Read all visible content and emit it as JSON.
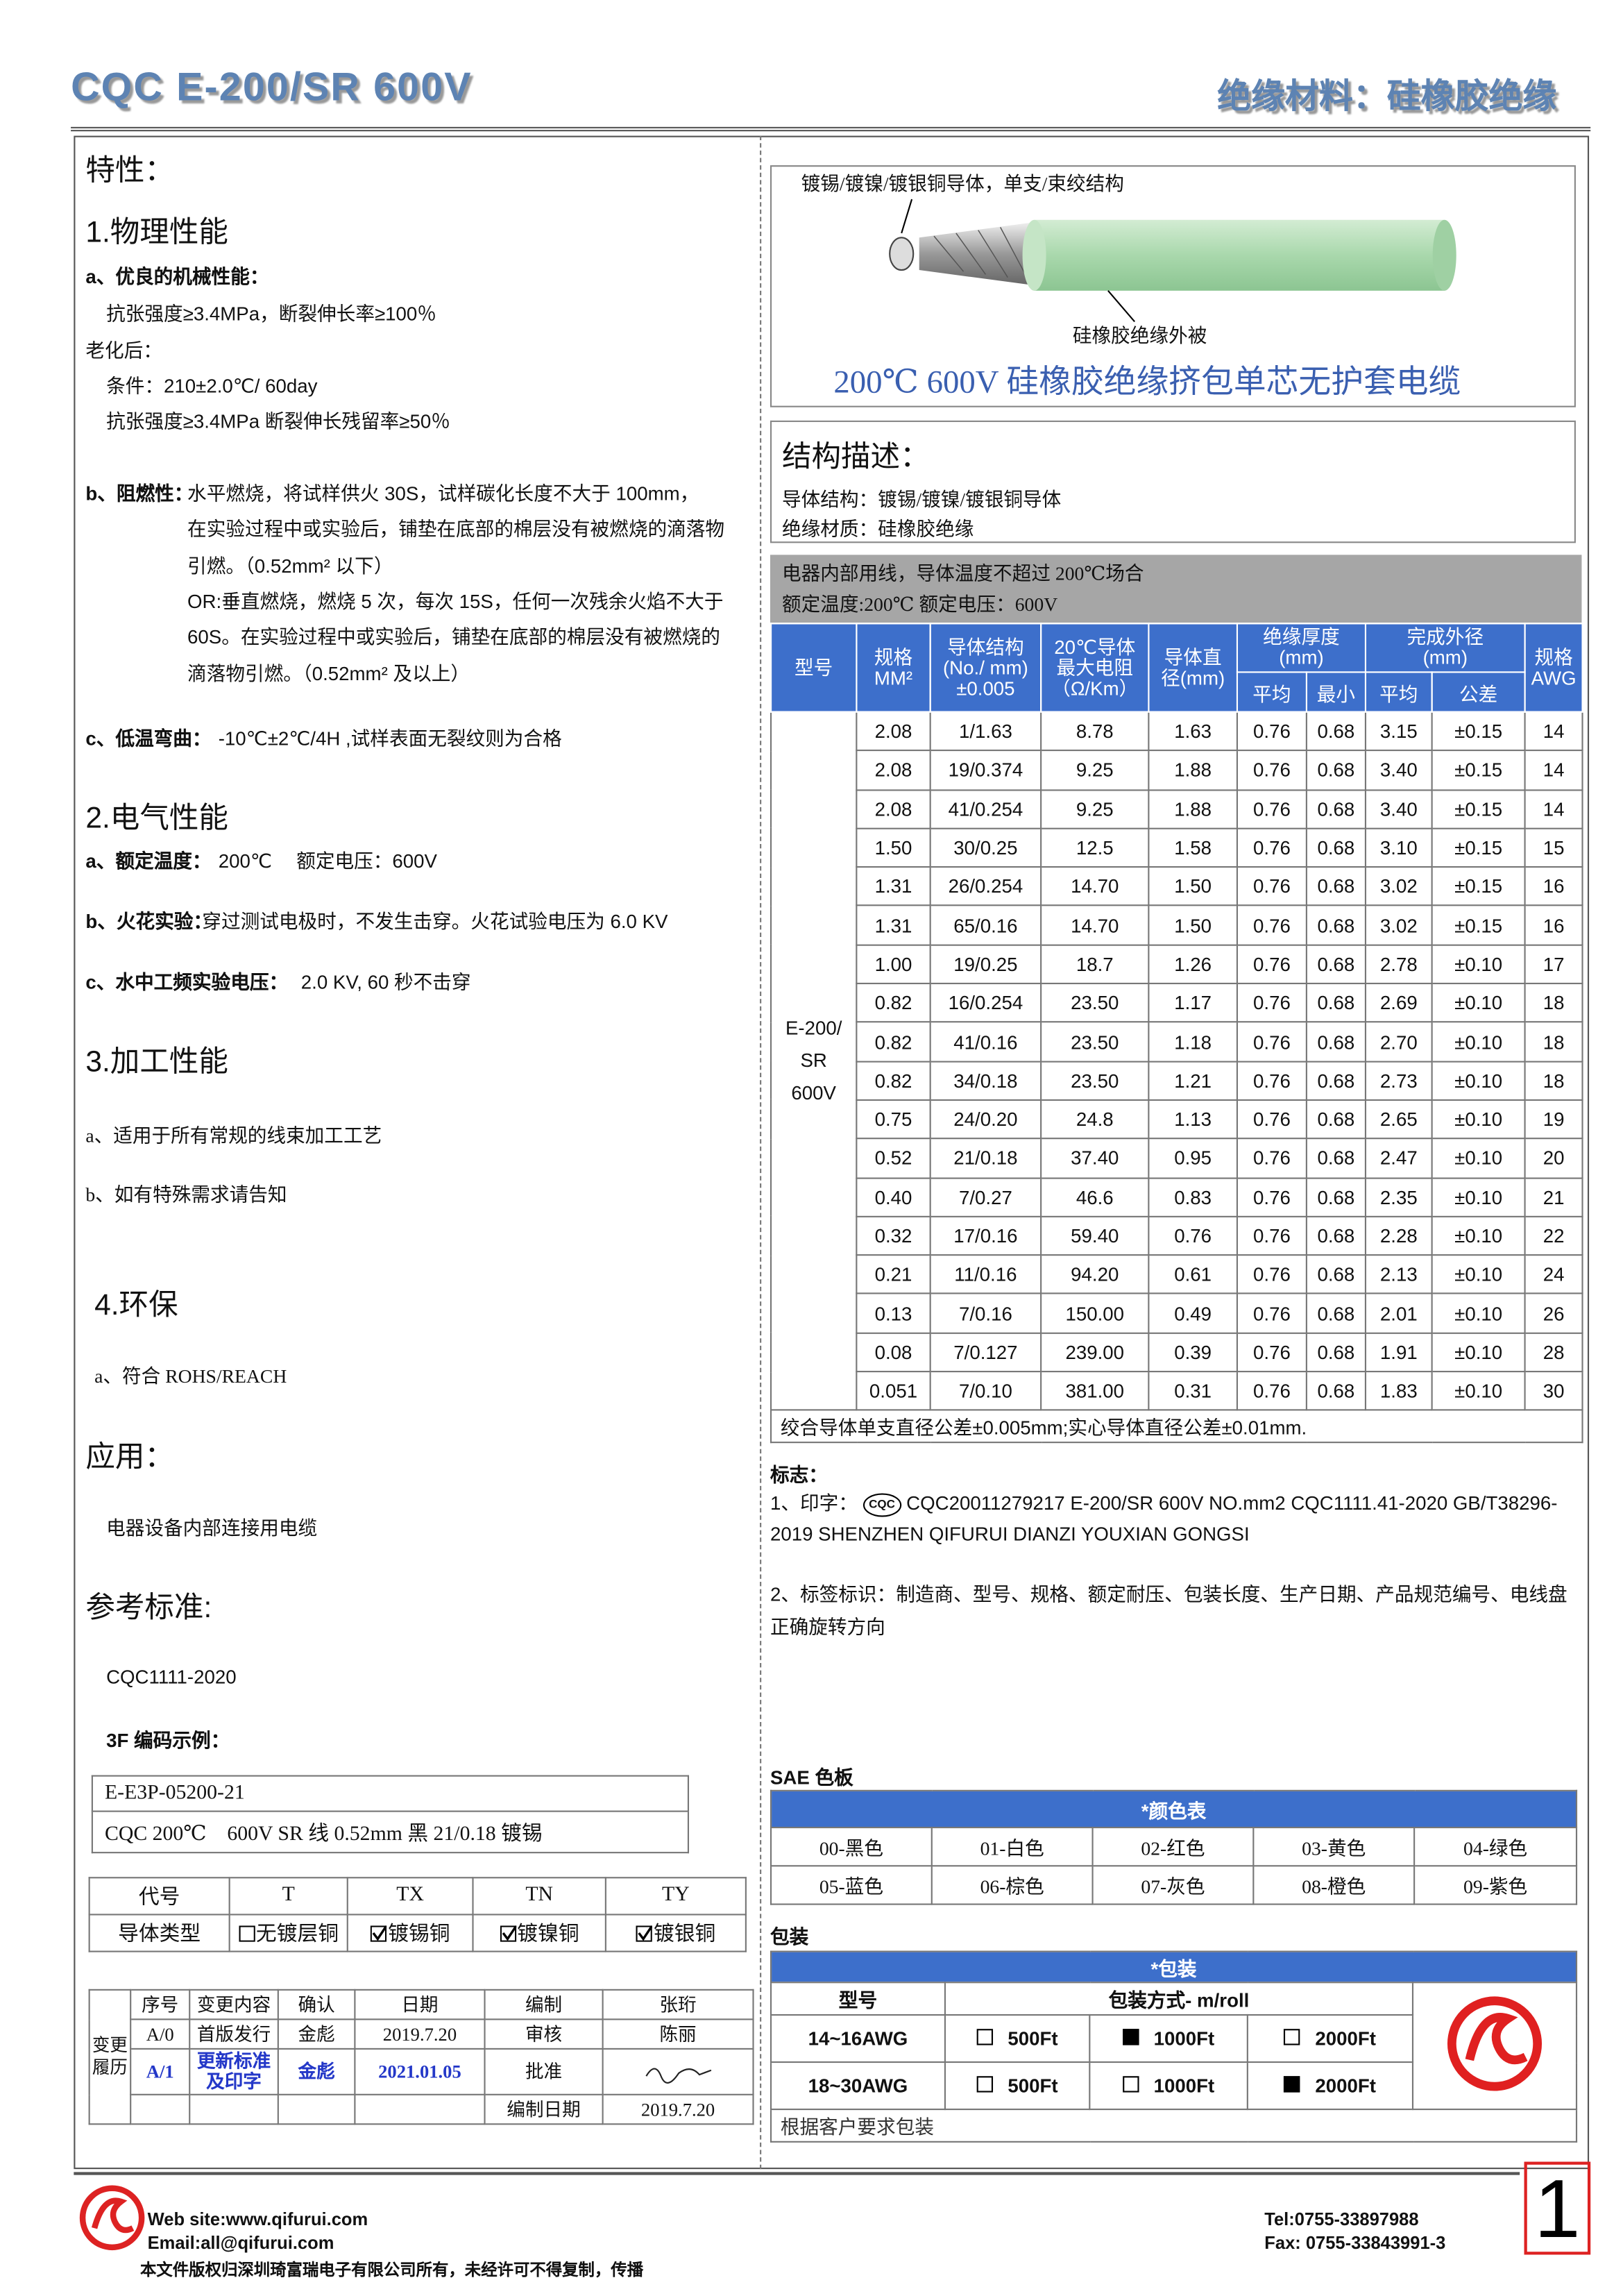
{
  "header": {
    "title": "CQC E-200/SR 600V",
    "category": "绝缘材料：硅橡胶绝缘"
  },
  "properties": {
    "heading": "特性：",
    "physical": {
      "title": "1.物理性能",
      "a_label": "a、优良的机械性能：",
      "a_lines": [
        "抗张强度≥3.4MPa，断裂伸长率≥100％",
        "老化后：",
        "条件：210±2.0℃/ 60day",
        "抗张强度≥3.4MPa 断裂伸长残留率≥50％"
      ],
      "b_label": "b、阻燃性：",
      "b_lines": [
        "水平燃烧，将试样供火 30S，试样碳化长度不大于 100mm，",
        "在实验过程中或实验后，铺垫在底部的棉层没有被燃烧的滴落物",
        "引燃。（0.52mm² 以下）",
        "OR:垂直燃烧，燃烧 5 次，每次 15S，任何一次残余火焰不大于",
        "60S。在实验过程中或实验后，铺垫在底部的棉层没有被燃烧的",
        "滴落物引燃。（0.52mm² 及以上）"
      ],
      "c_label": "c、低温弯曲：",
      "c_text": "-10℃±2℃/4H ,试样表面无裂纹则为合格"
    },
    "electrical": {
      "title": "2.电气性能",
      "items": [
        {
          "label": "a、额定温度：",
          "text": "200℃　 额定电压：600V"
        },
        {
          "label": "b、火花实验：",
          "text": "穿过测试电极时，不发生击穿。火花试验电压为 6.0 KV"
        },
        {
          "label": "c、水中工频实验电压：",
          "text": "2.0 KV, 60 秒不击穿"
        }
      ]
    },
    "processing": {
      "title": "3.加工性能",
      "items": [
        "a、适用于所有常规的线束加工工艺",
        "b、如有特殊需求请告知"
      ]
    },
    "environment": {
      "title": "4.环保",
      "items": [
        "a、符合 ROHS/REACH"
      ]
    }
  },
  "application": {
    "title": "应用：",
    "text": "电器设备内部连接用电缆"
  },
  "standards": {
    "title": "参考标准:",
    "text": "CQC1111-2020",
    "code_title": "3F 编码示例：",
    "code_lines": [
      "E-E3P-05200-21",
      "CQC 200℃　600V SR 线  0.52mm  黑 21/0.18 镀锡"
    ]
  },
  "conductor_table": {
    "rows": [
      [
        "代号",
        "T",
        "TX",
        "TN",
        "TY"
      ],
      [
        "导体类型",
        "无镀层铜",
        "镀锡铜",
        "镀镍铜",
        "镀银铜"
      ]
    ],
    "checked": [
      false,
      true,
      true,
      true
    ]
  },
  "revision": {
    "label": "变更履历",
    "rows": [
      [
        "序号",
        "变更内容",
        "确认",
        "日期",
        "编制",
        "张珩"
      ],
      [
        "A/0",
        "首版发行",
        "金彪",
        "2019.7.20",
        "审核",
        "陈丽"
      ],
      [
        "A/1",
        "更新标准及印字",
        "金彪",
        "2021.01.05",
        "批准",
        null
      ],
      [
        null,
        null,
        null,
        null,
        "编制日期",
        "2019.7.20"
      ]
    ]
  },
  "structure_image": {
    "top_label": "镀锡/镀镍/镀银铜导体，单支/束绞结构",
    "bottom_label": "硅橡胶绝缘外被",
    "caption": "200℃  600V 硅橡胶绝缘挤包单芯无护套电缆"
  },
  "structure": {
    "title": "结构描述：",
    "lines": [
      "导体结构：镀锡/镀镍/镀银铜导体",
      "绝缘材质：硅橡胶绝缘"
    ]
  },
  "spec_table": {
    "notes": [
      "电器内部用线，导体温度不超过 200℃场合",
      "额定温度:200℃  额定电压：600V"
    ],
    "headers": {
      "model": [
        "型号"
      ],
      "spec": [
        "规格",
        "MM²"
      ],
      "conductor": [
        "导体结构",
        "(No./ mm)",
        "±0.005"
      ],
      "resistance": [
        "20℃导体",
        "最大电阻",
        "（Ω/Km）"
      ],
      "diameter": [
        "导体直",
        "径(mm)"
      ],
      "insulation": [
        "绝缘厚度",
        "(mm)"
      ],
      "ins_avg": [
        "平均"
      ],
      "ins_min": [
        "最小"
      ],
      "od": [
        "完成外径",
        "(mm)"
      ],
      "od_avg": [
        "平均"
      ],
      "od_tol": [
        "公差"
      ],
      "awg": [
        "规格",
        "AWG"
      ]
    },
    "model": [
      "E-200/",
      "SR",
      "600V"
    ],
    "rows": [
      [
        "2.08",
        "1/1.63",
        "8.78",
        "1.63",
        "0.76",
        "0.68",
        "3.15",
        "±0.15",
        "14"
      ],
      [
        "2.08",
        "19/0.374",
        "9.25",
        "1.88",
        "0.76",
        "0.68",
        "3.40",
        "±0.15",
        "14"
      ],
      [
        "2.08",
        "41/0.254",
        "9.25",
        "1.88",
        "0.76",
        "0.68",
        "3.40",
        "±0.15",
        "14"
      ],
      [
        "1.50",
        "30/0.25",
        "12.5",
        "1.58",
        "0.76",
        "0.68",
        "3.10",
        "±0.15",
        "15"
      ],
      [
        "1.31",
        "26/0.254",
        "14.70",
        "1.50",
        "0.76",
        "0.68",
        "3.02",
        "±0.15",
        "16"
      ],
      [
        "1.31",
        "65/0.16",
        "14.70",
        "1.50",
        "0.76",
        "0.68",
        "3.02",
        "±0.15",
        "16"
      ],
      [
        "1.00",
        "19/0.25",
        "18.7",
        "1.26",
        "0.76",
        "0.68",
        "2.78",
        "±0.10",
        "17"
      ],
      [
        "0.82",
        "16/0.254",
        "23.50",
        "1.17",
        "0.76",
        "0.68",
        "2.69",
        "±0.10",
        "18"
      ],
      [
        "0.82",
        "41/0.16",
        "23.50",
        "1.18",
        "0.76",
        "0.68",
        "2.70",
        "±0.10",
        "18"
      ],
      [
        "0.82",
        "34/0.18",
        "23.50",
        "1.21",
        "0.76",
        "0.68",
        "2.73",
        "±0.10",
        "18"
      ],
      [
        "0.75",
        "24/0.20",
        "24.8",
        "1.13",
        "0.76",
        "0.68",
        "2.65",
        "±0.10",
        "19"
      ],
      [
        "0.52",
        "21/0.18",
        "37.40",
        "0.95",
        "0.76",
        "0.68",
        "2.47",
        "±0.10",
        "20"
      ],
      [
        "0.40",
        "7/0.27",
        "46.6",
        "0.83",
        "0.76",
        "0.68",
        "2.35",
        "±0.10",
        "21"
      ],
      [
        "0.32",
        "17/0.16",
        "59.40",
        "0.76",
        "0.76",
        "0.68",
        "2.28",
        "±0.10",
        "22"
      ],
      [
        "0.21",
        "11/0.16",
        "94.20",
        "0.61",
        "0.76",
        "0.68",
        "2.13",
        "±0.10",
        "24"
      ],
      [
        "0.13",
        "7/0.16",
        "150.00",
        "0.49",
        "0.76",
        "0.68",
        "2.01",
        "±0.10",
        "26"
      ],
      [
        "0.08",
        "7/0.127",
        "239.00",
        "0.39",
        "0.76",
        "0.68",
        "1.91",
        "±0.10",
        "28"
      ],
      [
        "0.051",
        "7/0.10",
        "381.00",
        "0.31",
        "0.76",
        "0.68",
        "1.83",
        "±0.10",
        "30"
      ]
    ],
    "footnote": "绞合导体单支直径公差±0.005mm;实心导体直径公差±0.01mm."
  },
  "marking": {
    "title": "标志：",
    "line1_prefix": "1、印字：",
    "cqc_logo": "CQC",
    "line1": "CQC20011279217   E-200/SR   600V   NO.mm2   CQC1111.41-2020 GB/T38296-2019 SHENZHEN QIFURUI DIANZI YOUXIAN GONGSI",
    "line2": "2、标签标识：制造商、型号、规格、额定耐压、包装长度、生产日期、产品规范编号、电线盘正确旋转方向"
  },
  "colors": {
    "title": "SAE 色板",
    "header": "*颜色表",
    "items": [
      "00-黑色",
      "01-白色",
      "02-红色",
      "03-黄色",
      "04-绿色",
      "05-蓝色",
      "06-棕色",
      "07-灰色",
      "08-橙色",
      "09-紫色"
    ]
  },
  "packaging": {
    "title": "包装",
    "header": "*包装",
    "col_model": "型号",
    "col_method": "包装方式- m/roll",
    "rows": [
      {
        "model": "14~16AWG",
        "options": [
          "500Ft",
          "1000Ft",
          "2000Ft"
        ],
        "selected": 1
      },
      {
        "model": "18~30AWG",
        "options": [
          "500Ft",
          "1000Ft",
          "2000Ft"
        ],
        "selected": 2
      }
    ],
    "note": "根据客户要求包装"
  },
  "footer": {
    "website": "Web site:www.qifurui.com",
    "email": "Email:all@qifurui.com",
    "copyright": "本文件版权归深圳琦富瑞电子有限公司所有，未经许可不得复制，传播",
    "tel": "Tel:0755-33897988",
    "fax": "Fax: 0755-33843991-3",
    "page": "1"
  }
}
